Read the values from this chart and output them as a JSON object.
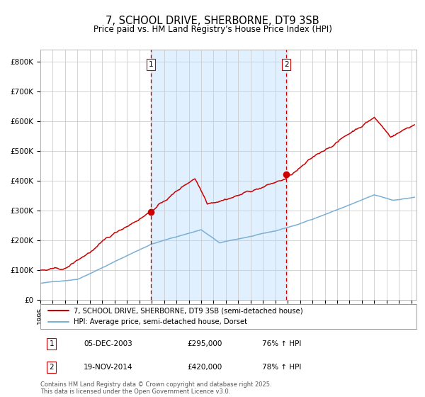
{
  "title": "7, SCHOOL DRIVE, SHERBORNE, DT9 3SB",
  "subtitle": "Price paid vs. HM Land Registry's House Price Index (HPI)",
  "legend_line1": "7, SCHOOL DRIVE, SHERBORNE, DT9 3SB (semi-detached house)",
  "legend_line2": "HPI: Average price, semi-detached house, Dorset",
  "transaction1_date": "05-DEC-2003",
  "transaction1_price": 295000,
  "transaction1_hpi": "76% ↑ HPI",
  "transaction2_date": "19-NOV-2014",
  "transaction2_price": 420000,
  "transaction2_hpi": "78% ↑ HPI",
  "footer": "Contains HM Land Registry data © Crown copyright and database right 2025.\nThis data is licensed under the Open Government Licence v3.0.",
  "red_color": "#cc0000",
  "blue_color": "#7bafd4",
  "bg_shade_color": "#dceeff",
  "grid_color": "#cccccc",
  "ylim": [
    0,
    840000
  ],
  "yticks": [
    0,
    100000,
    200000,
    300000,
    400000,
    500000,
    600000,
    700000,
    800000
  ],
  "ytick_labels": [
    "£0",
    "£100K",
    "£200K",
    "£300K",
    "£400K",
    "£500K",
    "£600K",
    "£700K",
    "£800K"
  ]
}
